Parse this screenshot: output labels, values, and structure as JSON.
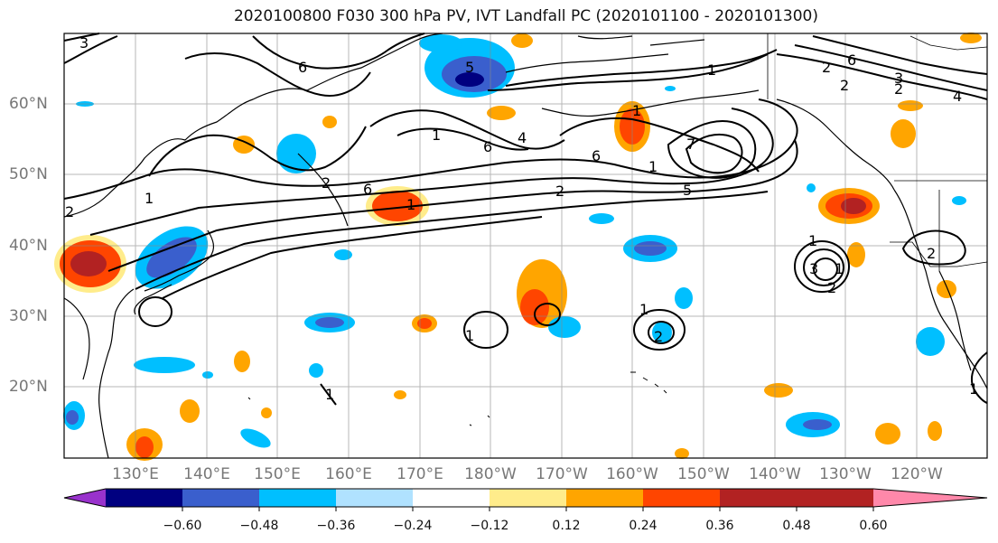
{
  "title": "2020100800 F030 300 hPa PV, IVT Landfall PC (2020101100 - 2020101300)",
  "lat_labels": [
    "60°N",
    "50°N",
    "40°N",
    "30°N",
    "20°N"
  ],
  "lon_labels": [
    "130°E",
    "140°E",
    "150°E",
    "160°E",
    "170°E",
    "180°W",
    "170°W",
    "160°W",
    "150°W",
    "140°W",
    "130°W",
    "120°W"
  ],
  "colorbar": {
    "colors": [
      "#9932cc",
      "#000080",
      "#3a5fcd",
      "#00bfff",
      "#b0e2ff",
      "#ffffff",
      "#ffec8b",
      "#ffa500",
      "#ff4500",
      "#b22222",
      "#ff88aa"
    ],
    "tick_labels": [
      "−0.60",
      "−0.48",
      "−0.36",
      "−0.24",
      "−0.12",
      "0.12",
      "0.24",
      "0.36",
      "0.48",
      "0.60"
    ]
  },
  "contour_labels": [
    "3",
    "2",
    "6",
    "1",
    "6",
    "4",
    "5",
    "1",
    "6",
    "7",
    "1",
    "2",
    "5",
    "6",
    "2",
    "1",
    "2",
    "1",
    "1",
    "2",
    "3",
    "1",
    "2",
    "1",
    "1",
    "1",
    "2",
    "2",
    "6",
    "3",
    "4",
    "2",
    "1",
    "1"
  ],
  "colors": {
    "coast": "#000000",
    "contour": "#000000",
    "grid": "#888888",
    "border": "#000000"
  }
}
